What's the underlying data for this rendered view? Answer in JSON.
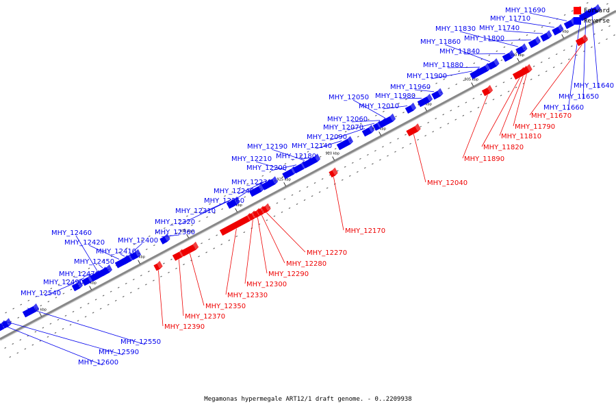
{
  "caption": "Megamonas hypermegale ART12/1 draft genome. - 0..2209938",
  "legend": {
    "forward_label": "Forward",
    "reverse_label": "Reverse",
    "forward_color": "#ff0000",
    "reverse_color": "#0000ff"
  },
  "colors": {
    "forward": "#ee0000",
    "reverse": "#0000ee",
    "backbone": "#888888"
  },
  "scale_ticks": [
    "895 kbp",
    "900 kbp",
    "905 kbp",
    "910 kbp",
    "915 kbp",
    "920 kbp",
    "925 kbp",
    "930 kbp",
    "935 kbp",
    "940 kbp",
    "945 kbp",
    "950 kbp"
  ],
  "reverse_genes": [
    "MHY_11640",
    "MHY_11650",
    "MHY_11660",
    "MHY_11690",
    "MHY_11710",
    "MHY_11740",
    "MHY_11800",
    "MHY_11830",
    "MHY_11840",
    "MHY_11860",
    "MHY_11880",
    "MHY_11900",
    "MHY_11960",
    "MHY_11980",
    "MHY_12010",
    "MHY_12050",
    "MHY_12060",
    "MHY_12070",
    "MHY_12090",
    "MHY_12140",
    "MHY_12180",
    "MHY_12190",
    "MHY_12200",
    "MHY_12210",
    "MHY_12230",
    "MHY_12240",
    "MHY_12260",
    "MHY_12310",
    "MHY_12320",
    "MHY_12360",
    "MHY_12400",
    "MHY_12410",
    "MHY_12420",
    "MHY_12450",
    "MHY_12460",
    "MHY_12470",
    "MHY_12490",
    "MHY_12540",
    "MHY_12550",
    "MHY_12590",
    "MHY_12600"
  ],
  "forward_genes": [
    "MHY_11670",
    "MHY_11790",
    "MHY_11810",
    "MHY_11820",
    "MHY_11890",
    "MHY_12040",
    "MHY_12170",
    "MHY_12270",
    "MHY_12280",
    "MHY_12290",
    "MHY_12300",
    "MHY_12330",
    "MHY_12350",
    "MHY_12370",
    "MHY_12390"
  ]
}
